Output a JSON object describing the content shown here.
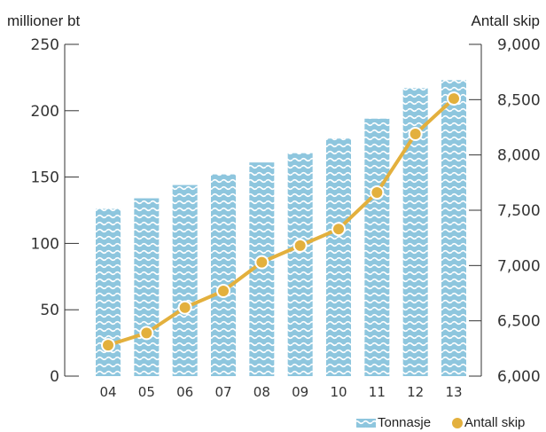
{
  "chart_data": {
    "type": "bar",
    "y_left_label": "millioner bt",
    "y_right_label": "Antall skip",
    "categories": [
      "04",
      "05",
      "06",
      "07",
      "08",
      "09",
      "10",
      "11",
      "12",
      "13"
    ],
    "series": [
      {
        "name": "Tonnasje",
        "type": "bar",
        "axis": "left",
        "values": [
          126,
          134,
          144,
          152,
          161,
          168,
          179,
          194,
          217,
          223
        ]
      },
      {
        "name": "Antall skip",
        "type": "line",
        "axis": "right",
        "values": [
          6280,
          6390,
          6620,
          6770,
          7030,
          7180,
          7330,
          7660,
          8190,
          8510
        ]
      }
    ],
    "y_left": {
      "min": 0,
      "max": 250,
      "ticks": [
        "0",
        "50",
        "100",
        "150",
        "200",
        "250"
      ]
    },
    "y_right": {
      "min": 6000,
      "max": 9000,
      "ticks": [
        "6,000",
        "6,500",
        "7,000",
        "7,500",
        "8,000",
        "8,500",
        "9,000"
      ]
    },
    "legend": [
      {
        "label": "Tonnasje",
        "marker": "wave-bar"
      },
      {
        "label": "Antall skip",
        "marker": "dot"
      }
    ],
    "legend_position": "bottom-right",
    "colors": {
      "bar": "#8ec6de",
      "bar_wave": "#ffffff",
      "line": "#e3b03d",
      "marker": "#e3b03d",
      "marker_stroke": "#ffffff",
      "axis": "#333333"
    }
  }
}
